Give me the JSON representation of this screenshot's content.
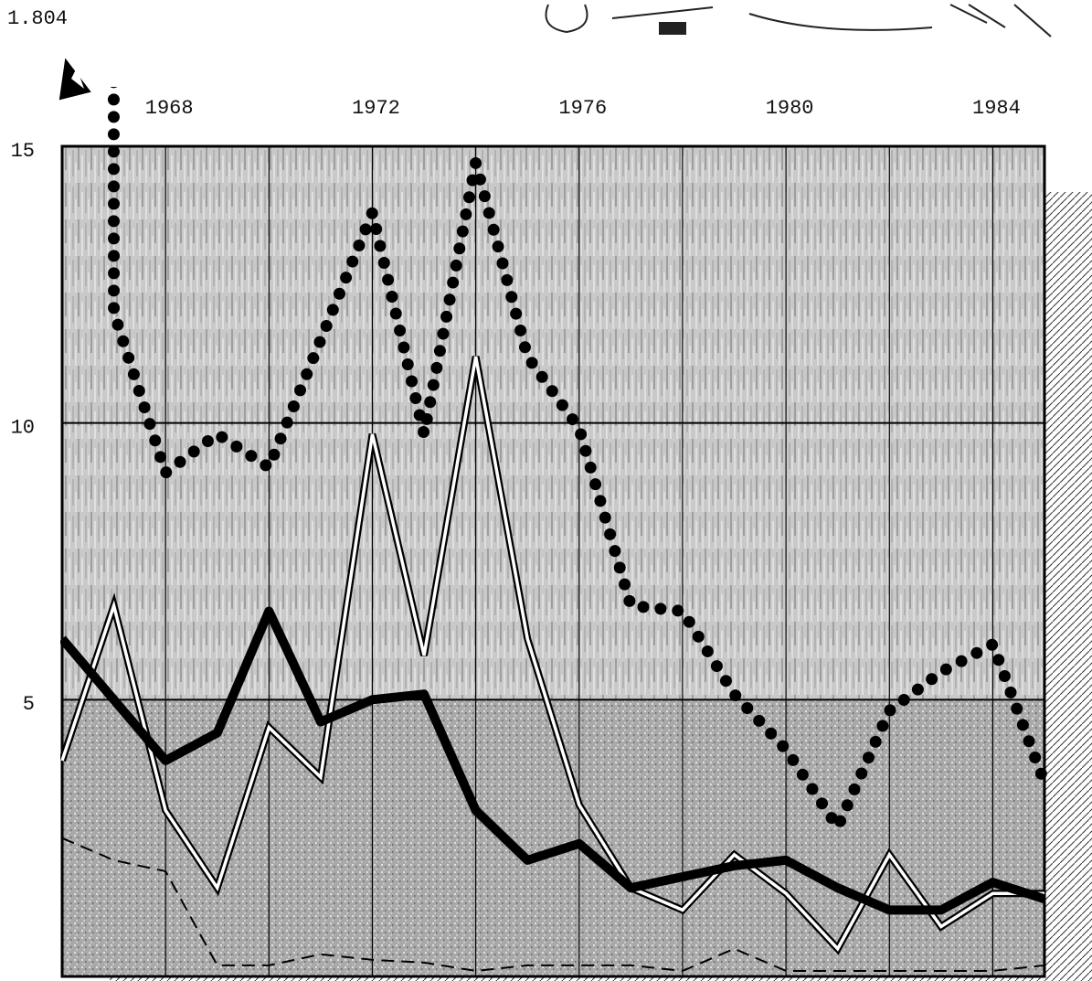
{
  "chart_data": {
    "type": "line",
    "annotation": "1.804",
    "x": [
      1966,
      1967,
      1968,
      1969,
      1970,
      1971,
      1972,
      1973,
      1974,
      1975,
      1976,
      1977,
      1978,
      1979,
      1980,
      1981,
      1982,
      1983,
      1984,
      1985
    ],
    "series": [
      {
        "color": "#000000",
        "style": "dotted",
        "values": [
          1804,
          12,
          9.1,
          9.8,
          9.2,
          11.5,
          13.8,
          9.8,
          14.7,
          11.2,
          9.9,
          6.7,
          6.6,
          5.1,
          4.1,
          2.7,
          4.8,
          5.5,
          6.0,
          3.5
        ],
        "value_labels": [
          "1.804",
          null,
          null,
          null,
          null,
          null,
          null,
          null,
          null,
          null,
          null,
          null,
          null,
          null,
          null,
          null,
          null,
          null,
          null,
          null
        ]
      },
      {
        "color": "#000000",
        "style": "double",
        "values": [
          3.9,
          6.7,
          3.0,
          1.6,
          4.5,
          3.6,
          9.8,
          5.8,
          11.2,
          6.1,
          3.1,
          1.6,
          1.2,
          2.2,
          1.5,
          0.5,
          2.2,
          0.9,
          1.5,
          1.5
        ]
      },
      {
        "color": "#000000",
        "style": "solid",
        "values": [
          6.1,
          5.0,
          3.9,
          4.4,
          6.6,
          4.6,
          5.0,
          5.1,
          3.0,
          2.1,
          2.4,
          1.6,
          1.8,
          2.0,
          2.1,
          1.6,
          1.2,
          1.2,
          1.7,
          1.4
        ]
      },
      {
        "color": "#000000",
        "style": "dashed",
        "values": [
          2.5,
          2.1,
          1.9,
          0.2,
          0.2,
          0.4,
          0.3,
          0.25,
          0.1,
          0.2,
          0.2,
          0.2,
          0.1,
          0.5,
          0.1,
          0.1,
          0.1,
          0.1,
          0.1,
          0.2
        ]
      }
    ],
    "xlim": [
      1966,
      1985
    ],
    "xticks": [
      1968,
      1972,
      1976,
      1980,
      1984
    ],
    "xgrid": [
      1968,
      1970,
      1972,
      1974,
      1976,
      1978,
      1980,
      1982,
      1984
    ],
    "ylim": [
      0,
      15
    ],
    "yticks": [
      5,
      10,
      15
    ],
    "grid": true
  }
}
